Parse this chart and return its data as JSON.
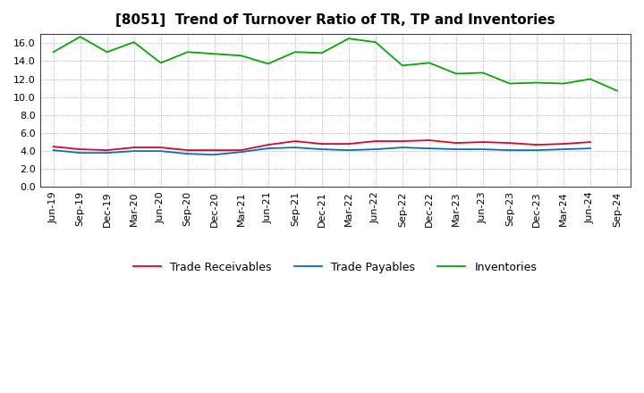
{
  "title": "[8051]  Trend of Turnover Ratio of TR, TP and Inventories",
  "labels": [
    "Jun-19",
    "Sep-19",
    "Dec-19",
    "Mar-20",
    "Jun-20",
    "Sep-20",
    "Dec-20",
    "Mar-21",
    "Jun-21",
    "Sep-21",
    "Dec-21",
    "Mar-22",
    "Jun-22",
    "Sep-22",
    "Dec-22",
    "Mar-23",
    "Jun-23",
    "Sep-23",
    "Dec-23",
    "Mar-24",
    "Jun-24",
    "Sep-24"
  ],
  "trade_receivables": [
    4.5,
    4.2,
    4.1,
    4.4,
    4.4,
    4.1,
    4.1,
    4.1,
    4.7,
    5.1,
    4.8,
    4.8,
    5.1,
    5.1,
    5.2,
    4.9,
    5.0,
    4.9,
    4.7,
    4.8,
    5.0,
    null
  ],
  "trade_payables": [
    4.1,
    3.8,
    3.8,
    4.0,
    4.0,
    3.7,
    3.6,
    3.9,
    4.3,
    4.4,
    4.2,
    4.1,
    4.2,
    4.4,
    4.3,
    4.2,
    4.2,
    4.1,
    4.1,
    4.2,
    4.3,
    null
  ],
  "inventories": [
    15.0,
    16.7,
    15.0,
    16.1,
    13.8,
    15.0,
    14.8,
    14.6,
    13.7,
    15.0,
    14.9,
    16.5,
    16.1,
    13.5,
    13.8,
    12.6,
    12.7,
    11.5,
    11.6,
    11.5,
    12.0,
    10.7
  ],
  "trade_receivables_color": "#e8001c",
  "trade_payables_color": "#0070c0",
  "inventories_color": "#00aa00",
  "background_color": "#ffffff",
  "grid_color": "#999999",
  "ylim": [
    0.0,
    17.0
  ],
  "yticks": [
    0.0,
    2.0,
    4.0,
    6.0,
    8.0,
    10.0,
    12.0,
    14.0,
    16.0
  ],
  "legend_labels": [
    "Trade Receivables",
    "Trade Payables",
    "Inventories"
  ],
  "title_fontsize": 11,
  "tick_fontsize": 8
}
